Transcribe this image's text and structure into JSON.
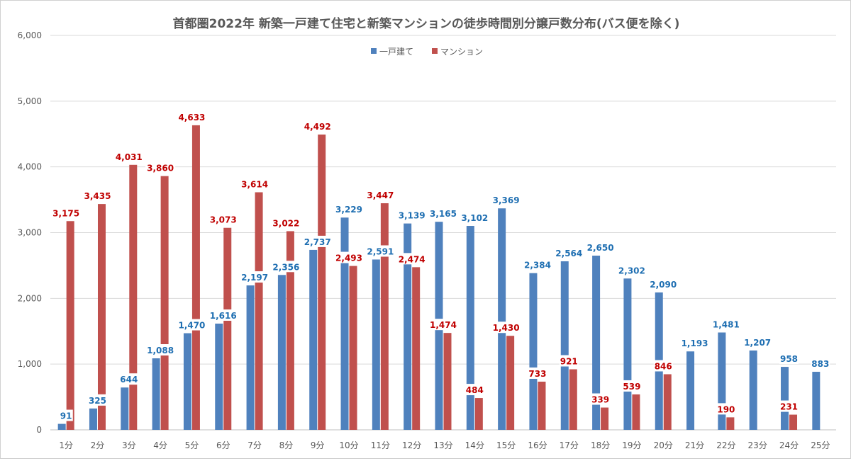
{
  "chart_data": {
    "type": "bar",
    "title": "首都圏2022年  新築一戸建て住宅と新築マンションの徒歩時間別分譲戸数分布(バス便を除く)",
    "xlabel": "",
    "ylabel": "",
    "ylim": [
      0,
      6000
    ],
    "yticks": [
      0,
      1000,
      2000,
      3000,
      4000,
      5000,
      6000
    ],
    "ytick_labels": [
      "0",
      "1,000",
      "2,000",
      "3,000",
      "4,000",
      "5,000",
      "6,000"
    ],
    "grid": true,
    "legend_position": "top-center",
    "categories": [
      "1分",
      "2分",
      "3分",
      "4分",
      "5分",
      "6分",
      "7分",
      "8分",
      "9分",
      "10分",
      "11分",
      "12分",
      "13分",
      "14分",
      "15分",
      "16分",
      "17分",
      "18分",
      "19分",
      "20分",
      "21分",
      "22分",
      "23分",
      "24分",
      "25分"
    ],
    "series": [
      {
        "name": "一戸建て",
        "color": "#4f81bd",
        "label_color": "#1f6fb2",
        "values": [
          91,
          325,
          644,
          1088,
          1470,
          1616,
          2197,
          2356,
          2737,
          3229,
          2591,
          3139,
          3165,
          3102,
          3369,
          2384,
          2564,
          2650,
          2302,
          2090,
          1193,
          1481,
          1207,
          958,
          883
        ],
        "labels": [
          "91",
          "325",
          "644",
          "1,088",
          "1,470",
          "1,616",
          "2,197",
          "2,356",
          "2,737",
          "3,229",
          "2,591",
          "3,139",
          "3,165",
          "3,102",
          "3,369",
          "2,384",
          "2,564",
          "2,650",
          "2,302",
          "2,090",
          "1,193",
          "1,481",
          "1,207",
          "958",
          "883"
        ]
      },
      {
        "name": "マンション",
        "color": "#c0504d",
        "label_color": "#c00000",
        "values": [
          3175,
          3435,
          4031,
          3860,
          4633,
          3073,
          3614,
          3022,
          4492,
          2493,
          3447,
          2474,
          1474,
          484,
          1430,
          733,
          921,
          339,
          539,
          846,
          null,
          190,
          null,
          231,
          null
        ],
        "labels": [
          "3,175",
          "3,435",
          "4,031",
          "3,860",
          "4,633",
          "3,073",
          "3,614",
          "3,022",
          "4,492",
          "2,493",
          "3,447",
          "2,474",
          "1,474",
          "484",
          "1,430",
          "733",
          "921",
          "339",
          "539",
          "846",
          null,
          "190",
          null,
          "231",
          null
        ]
      }
    ]
  }
}
